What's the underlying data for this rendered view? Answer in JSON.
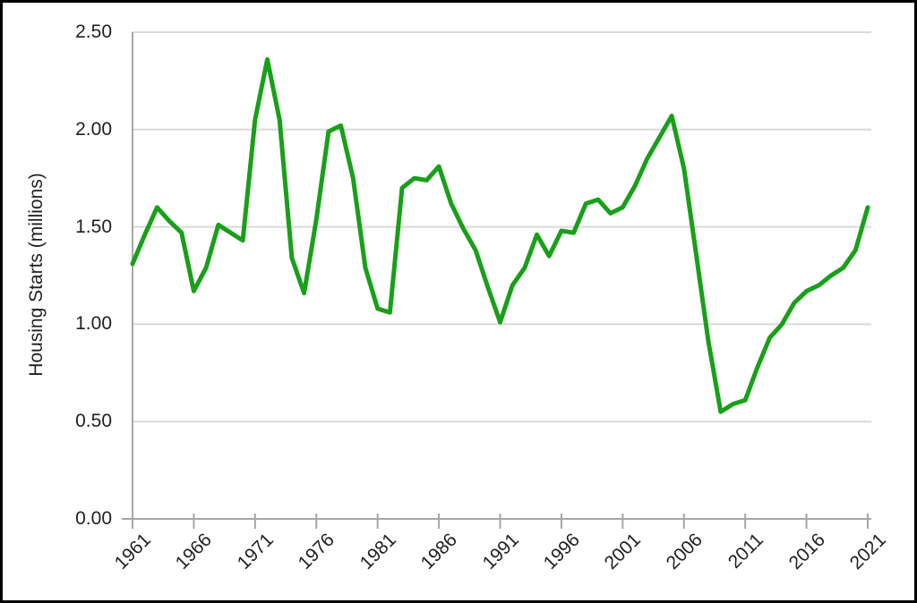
{
  "figure": {
    "background_color": "#ffffff",
    "border_color": "#000000"
  },
  "chart_data": {
    "type": "line",
    "title": "",
    "xlabel": "",
    "ylabel": "Housing Starts (millions)",
    "x": [
      1961,
      1962,
      1963,
      1964,
      1965,
      1966,
      1967,
      1968,
      1969,
      1970,
      1971,
      1972,
      1973,
      1974,
      1975,
      1976,
      1977,
      1978,
      1979,
      1980,
      1981,
      1982,
      1983,
      1984,
      1985,
      1986,
      1987,
      1988,
      1989,
      1990,
      1991,
      1992,
      1993,
      1994,
      1995,
      1996,
      1997,
      1998,
      1999,
      2000,
      2001,
      2002,
      2003,
      2004,
      2005,
      2006,
      2007,
      2008,
      2009,
      2010,
      2011,
      2012,
      2013,
      2014,
      2015,
      2016,
      2017,
      2018,
      2019,
      2020,
      2021
    ],
    "values": [
      1.31,
      1.46,
      1.6,
      1.53,
      1.47,
      1.17,
      1.29,
      1.51,
      1.47,
      1.43,
      2.05,
      2.36,
      2.05,
      1.34,
      1.16,
      1.54,
      1.99,
      2.02,
      1.75,
      1.29,
      1.08,
      1.06,
      1.7,
      1.75,
      1.74,
      1.81,
      1.62,
      1.49,
      1.38,
      1.19,
      1.01,
      1.2,
      1.29,
      1.46,
      1.35,
      1.48,
      1.47,
      1.62,
      1.64,
      1.57,
      1.6,
      1.71,
      1.85,
      1.96,
      2.07,
      1.8,
      1.36,
      0.91,
      0.55,
      0.59,
      0.61,
      0.78,
      0.93,
      1.0,
      1.11,
      1.17,
      1.2,
      1.25,
      1.29,
      1.38,
      1.6
    ],
    "ylim": [
      0.0,
      2.5
    ],
    "y_tick_step": 0.5,
    "grid": "horizontal-only",
    "legend_position": "none",
    "series_color": "#18A018",
    "grid_color": "#D9D9D9",
    "axis_color": "#A6A6A6",
    "text_color": "#1f1f1f"
  },
  "y_axis": {
    "title": "Housing Starts (millions)",
    "tick_labels_top_to_bottom": [
      "2.50",
      "2.00",
      "1.50",
      "1.00",
      "0.50",
      "0.00"
    ]
  },
  "x_axis": {
    "tick_labels": [
      "1961",
      "1966",
      "1971",
      "1976",
      "1981",
      "1986",
      "1991",
      "1996",
      "2001",
      "2006",
      "2011",
      "2016",
      "2021"
    ],
    "first_year": 1961,
    "last_year": 2021,
    "label_step_years": 5,
    "label_rotation_degrees": 45
  }
}
